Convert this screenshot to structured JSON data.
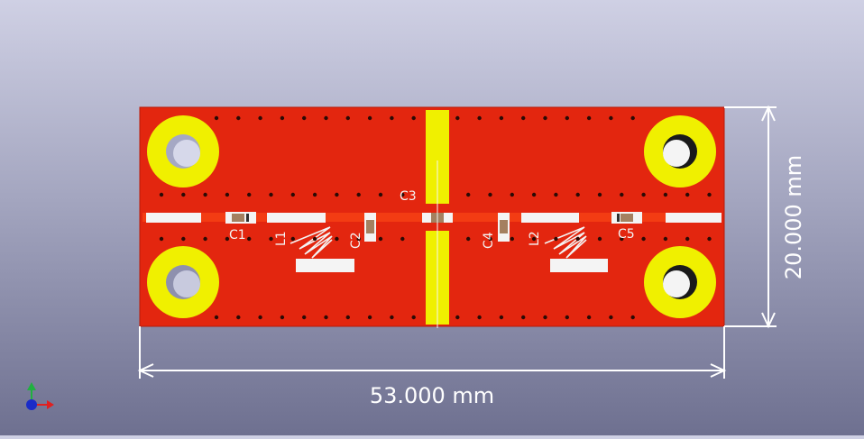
{
  "board": {
    "dimension_width": "53.000 mm",
    "dimension_height": "20.000 mm",
    "colors": {
      "board": "#e3260f",
      "copper": "#f03c12",
      "pad": "#f0f000",
      "silk": "#f4f4f4",
      "dimension": "#ffffff"
    }
  },
  "components": [
    {
      "ref": "C1"
    },
    {
      "ref": "L1"
    },
    {
      "ref": "C2"
    },
    {
      "ref": "C3"
    },
    {
      "ref": "C4"
    },
    {
      "ref": "L2"
    },
    {
      "ref": "C5"
    }
  ],
  "axis_gizmo": {
    "icon": "xyz-axes-icon"
  }
}
